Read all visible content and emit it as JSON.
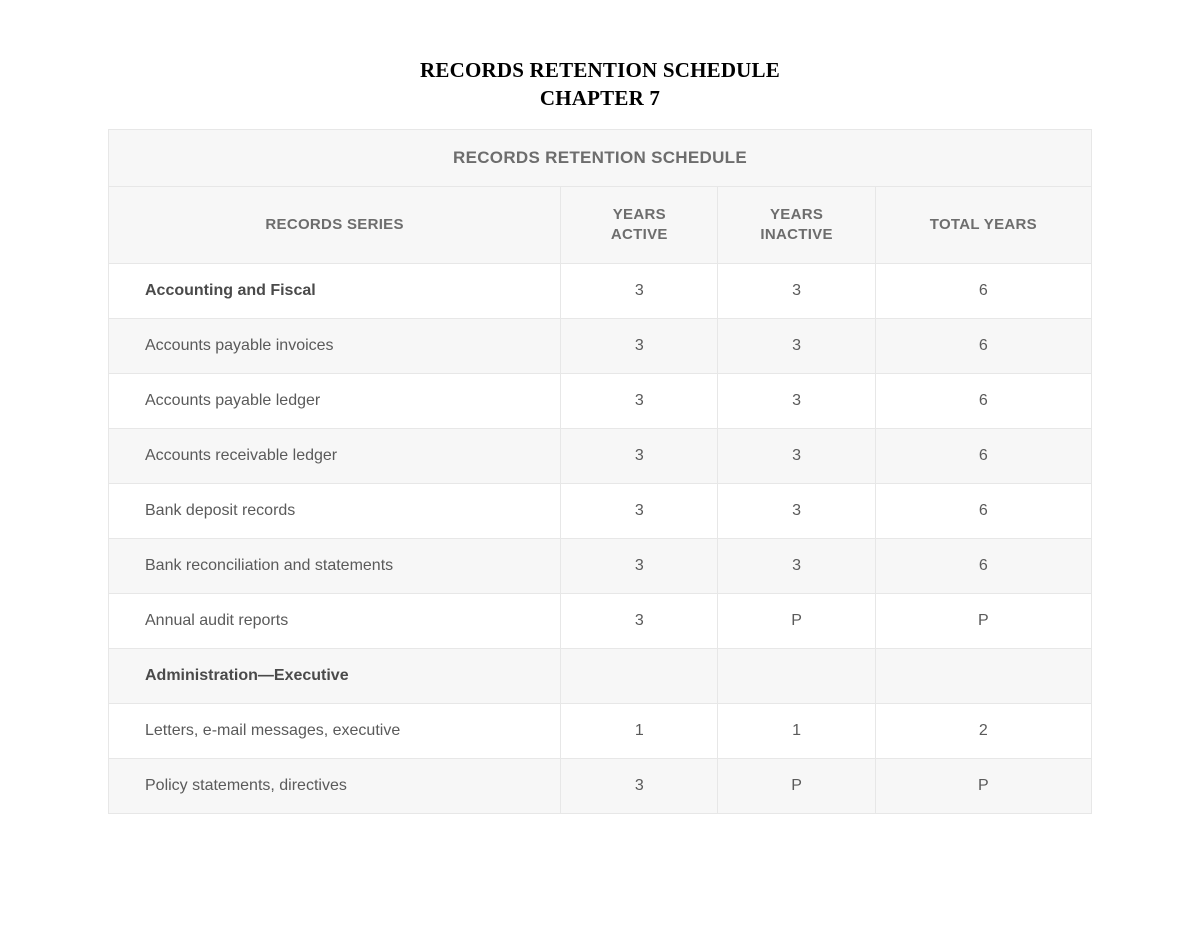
{
  "document": {
    "title_line1": "RECORDS RETENTION SCHEDULE",
    "title_line2": "CHAPTER 7"
  },
  "table": {
    "title": "RECORDS RETENTION SCHEDULE",
    "columns": {
      "series": "RECORDS SERIES",
      "active": "YEARS ACTIVE",
      "inactive": "YEARS INACTIVE",
      "total": "TOTAL YEARS"
    },
    "column_widths_pct": [
      46,
      16,
      16,
      22
    ],
    "colors": {
      "header_bg": "#f7f7f7",
      "row_alt_bg": "#f7f7f7",
      "border": "#e7e7e7",
      "text": "#5a5a5a"
    },
    "rows": [
      {
        "label": "Accounting and Fiscal",
        "active": "3",
        "inactive": "3",
        "total": "6",
        "section": true
      },
      {
        "label": "Accounts payable invoices",
        "active": "3",
        "inactive": "3",
        "total": "6",
        "section": false
      },
      {
        "label": "Accounts payable ledger",
        "active": "3",
        "inactive": "3",
        "total": "6",
        "section": false
      },
      {
        "label": "Accounts receivable ledger",
        "active": "3",
        "inactive": "3",
        "total": "6",
        "section": false
      },
      {
        "label": "Bank deposit records",
        "active": "3",
        "inactive": "3",
        "total": "6",
        "section": false
      },
      {
        "label": "Bank reconciliation and statements",
        "active": "3",
        "inactive": "3",
        "total": "6",
        "section": false
      },
      {
        "label": "Annual audit reports",
        "active": "3",
        "inactive": "P",
        "total": "P",
        "section": false
      },
      {
        "label": "Administration—Executive",
        "active": "",
        "inactive": "",
        "total": "",
        "section": true
      },
      {
        "label": "Letters, e-mail messages, executive",
        "active": "1",
        "inactive": "1",
        "total": "2",
        "section": false
      },
      {
        "label": "Policy statements, directives",
        "active": "3",
        "inactive": "P",
        "total": "P",
        "section": false
      }
    ]
  }
}
